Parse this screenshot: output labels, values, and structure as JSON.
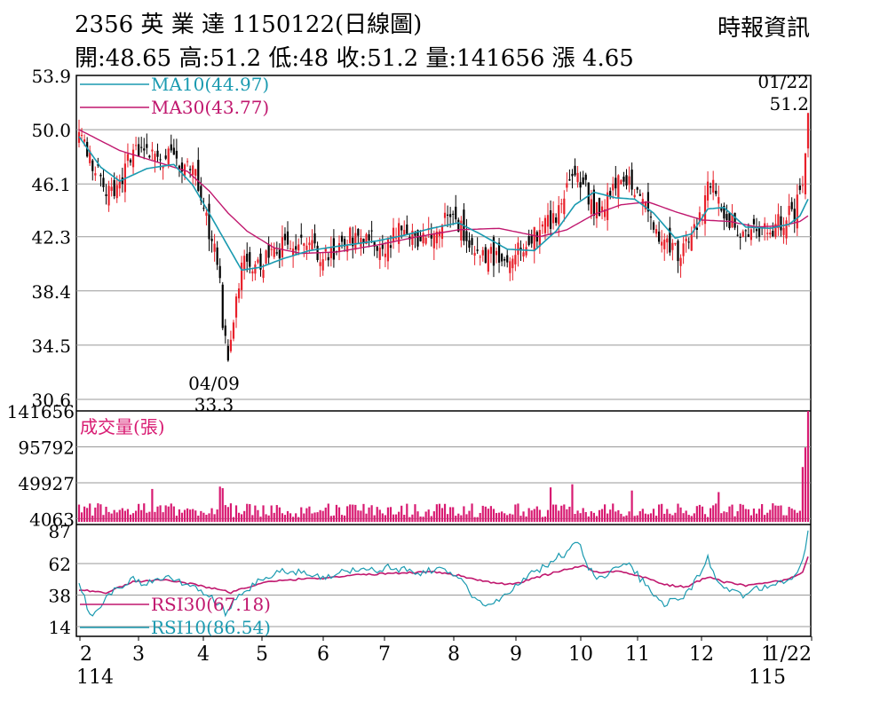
{
  "header": {
    "title": "2356 英 業 達 1150122(日線圖)",
    "summary": "開:48.65 高:51.2 低:48 收:51.2 量:141656 漲 4.65",
    "source": "時報資訊"
  },
  "colors": {
    "up": "#e8202a",
    "down": "#000000",
    "ma10": "#1a9ab0",
    "ma30": "#c0176e",
    "volume": "#d81b72",
    "rsi10": "#1a9ab0",
    "rsi30": "#c0176e",
    "grid": "#999999"
  },
  "chart_data": [
    {
      "type": "candlestick",
      "title": "2356 英 業 達 1150122(日線圖)",
      "y_ticks": [
        53.9,
        50.0,
        46.1,
        42.3,
        38.4,
        34.5,
        30.6
      ],
      "ylim": [
        30.6,
        53.9
      ],
      "grid": true,
      "x_tick_labels": [
        {
          "label": "2",
          "sub": "114"
        },
        {
          "label": "3"
        },
        {
          "label": "4"
        },
        {
          "label": "5"
        },
        {
          "label": "6"
        },
        {
          "label": "7"
        },
        {
          "label": "8"
        },
        {
          "label": "9"
        },
        {
          "label": "10"
        },
        {
          "label": "11"
        },
        {
          "label": "12"
        },
        {
          "label": "1",
          "sub": "115"
        },
        {
          "label": "1/22"
        }
      ],
      "annotations": [
        {
          "date": "04/09",
          "value": "33.3",
          "position": "below"
        },
        {
          "date": "01/22",
          "value": "51.2",
          "position": "above"
        }
      ],
      "legend": [
        {
          "name": "MA10(44.97)",
          "series": "ma10"
        },
        {
          "name": "MA30(43.77)",
          "series": "ma30"
        }
      ],
      "close_path": [
        [
          0,
          49.6
        ],
        [
          5,
          47.5
        ],
        [
          10,
          45.6
        ],
        [
          14,
          46.0
        ],
        [
          20,
          48.4
        ],
        [
          28,
          47.9
        ],
        [
          35,
          48.0
        ],
        [
          40,
          47.4
        ],
        [
          43,
          46.6
        ],
        [
          46,
          44.2
        ],
        [
          49,
          42.0
        ],
        [
          52,
          40.0
        ],
        [
          53,
          36.2
        ],
        [
          55,
          34.0
        ],
        [
          58,
          37.5
        ],
        [
          60,
          40.4
        ],
        [
          64,
          39.8
        ],
        [
          70,
          40.9
        ],
        [
          76,
          41.7
        ],
        [
          82,
          42.2
        ],
        [
          86,
          41.4
        ],
        [
          91,
          40.9
        ],
        [
          96,
          41.6
        ],
        [
          100,
          42.4
        ],
        [
          104,
          41.8
        ],
        [
          108,
          42.3
        ],
        [
          112,
          41.5
        ],
        [
          115,
          42.1
        ],
        [
          120,
          43.0
        ],
        [
          125,
          42.1
        ],
        [
          132,
          43.1
        ],
        [
          138,
          43.9
        ],
        [
          142,
          42.6
        ],
        [
          148,
          41.3
        ],
        [
          155,
          40.6
        ],
        [
          160,
          41.1
        ],
        [
          165,
          41.9
        ],
        [
          170,
          42.8
        ],
        [
          176,
          43.9
        ],
        [
          180,
          46.3
        ],
        [
          183,
          47.0
        ],
        [
          187,
          45.7
        ],
        [
          190,
          44.1
        ],
        [
          194,
          44.7
        ],
        [
          198,
          45.9
        ],
        [
          202,
          46.5
        ],
        [
          206,
          45.8
        ],
        [
          210,
          43.7
        ],
        [
          214,
          42.6
        ],
        [
          218,
          41.8
        ],
        [
          222,
          40.9
        ],
        [
          226,
          42.1
        ],
        [
          230,
          44.2
        ],
        [
          233,
          46.3
        ],
        [
          236,
          44.6
        ],
        [
          240,
          43.5
        ],
        [
          244,
          42.8
        ],
        [
          248,
          42.4
        ],
        [
          252,
          43.0
        ],
        [
          256,
          42.9
        ],
        [
          260,
          43.6
        ],
        [
          264,
          44.1
        ],
        [
          266,
          45.4
        ],
        [
          268,
          48.0
        ],
        [
          269,
          51.2
        ]
      ],
      "ma10_path": [
        [
          0,
          49.5
        ],
        [
          8,
          47.3
        ],
        [
          15,
          46.3
        ],
        [
          25,
          47.2
        ],
        [
          35,
          47.5
        ],
        [
          42,
          46.0
        ],
        [
          48,
          44.0
        ],
        [
          55,
          41.6
        ],
        [
          60,
          39.9
        ],
        [
          67,
          40.1
        ],
        [
          75,
          40.7
        ],
        [
          85,
          41.3
        ],
        [
          95,
          41.6
        ],
        [
          110,
          42.0
        ],
        [
          120,
          42.4
        ],
        [
          130,
          42.9
        ],
        [
          140,
          43.3
        ],
        [
          148,
          42.5
        ],
        [
          158,
          41.4
        ],
        [
          168,
          41.3
        ],
        [
          176,
          42.7
        ],
        [
          183,
          44.6
        ],
        [
          190,
          45.5
        ],
        [
          198,
          45.1
        ],
        [
          205,
          45.0
        ],
        [
          212,
          44.0
        ],
        [
          220,
          42.2
        ],
        [
          226,
          42.5
        ],
        [
          232,
          44.3
        ],
        [
          238,
          44.4
        ],
        [
          246,
          43.0
        ],
        [
          255,
          42.9
        ],
        [
          262,
          43.2
        ],
        [
          266,
          43.8
        ],
        [
          269,
          45.0
        ]
      ],
      "ma30_path": [
        [
          0,
          50.0
        ],
        [
          15,
          48.5
        ],
        [
          30,
          47.6
        ],
        [
          40,
          47.0
        ],
        [
          48,
          45.6
        ],
        [
          55,
          44.0
        ],
        [
          62,
          42.7
        ],
        [
          72,
          41.5
        ],
        [
          82,
          41.1
        ],
        [
          95,
          41.2
        ],
        [
          110,
          41.7
        ],
        [
          125,
          42.3
        ],
        [
          140,
          42.8
        ],
        [
          155,
          42.9
        ],
        [
          170,
          42.3
        ],
        [
          180,
          42.8
        ],
        [
          190,
          43.9
        ],
        [
          200,
          44.6
        ],
        [
          210,
          44.8
        ],
        [
          220,
          44.1
        ],
        [
          230,
          43.5
        ],
        [
          240,
          43.4
        ],
        [
          250,
          43.0
        ],
        [
          260,
          43.1
        ],
        [
          266,
          43.4
        ],
        [
          269,
          43.8
        ]
      ]
    },
    {
      "type": "bar",
      "title": "成交量(張)",
      "y_ticks": [
        141656,
        95792,
        49927,
        4063
      ],
      "ylim": [
        0,
        141656
      ],
      "grid": true,
      "spikes": [
        [
          27,
          42000
        ],
        [
          52,
          45000
        ],
        [
          53,
          43000
        ],
        [
          174,
          44000
        ],
        [
          182,
          48000
        ],
        [
          204,
          40000
        ],
        [
          236,
          38000
        ],
        [
          267,
          70000
        ],
        [
          268,
          95000
        ],
        [
          269,
          141656
        ]
      ]
    },
    {
      "type": "line",
      "title": "RSI",
      "y_ticks": [
        87,
        62,
        38,
        14
      ],
      "ylim": [
        14,
        87
      ],
      "grid": true,
      "legend": [
        {
          "name": "RSI30(67.18)",
          "series": "rsi30"
        },
        {
          "name": "RSI10(86.54)",
          "series": "rsi10"
        }
      ],
      "rsi10_path": [
        [
          0,
          48
        ],
        [
          4,
          22
        ],
        [
          8,
          30
        ],
        [
          12,
          40
        ],
        [
          16,
          44
        ],
        [
          20,
          50
        ],
        [
          25,
          46
        ],
        [
          30,
          52
        ],
        [
          35,
          50
        ],
        [
          40,
          45
        ],
        [
          44,
          42
        ],
        [
          50,
          34
        ],
        [
          54,
          25
        ],
        [
          58,
          35
        ],
        [
          62,
          42
        ],
        [
          68,
          50
        ],
        [
          75,
          56
        ],
        [
          82,
          55
        ],
        [
          88,
          52
        ],
        [
          95,
          54
        ],
        [
          102,
          58
        ],
        [
          108,
          56
        ],
        [
          114,
          60
        ],
        [
          120,
          57
        ],
        [
          126,
          54
        ],
        [
          132,
          58
        ],
        [
          138,
          55
        ],
        [
          142,
          46
        ],
        [
          146,
          34
        ],
        [
          152,
          32
        ],
        [
          158,
          38
        ],
        [
          164,
          50
        ],
        [
          170,
          58
        ],
        [
          176,
          66
        ],
        [
          180,
          70
        ],
        [
          184,
          80
        ],
        [
          188,
          60
        ],
        [
          192,
          50
        ],
        [
          196,
          55
        ],
        [
          200,
          62
        ],
        [
          204,
          60
        ],
        [
          208,
          48
        ],
        [
          212,
          40
        ],
        [
          216,
          32
        ],
        [
          220,
          34
        ],
        [
          224,
          38
        ],
        [
          228,
          52
        ],
        [
          232,
          66
        ],
        [
          236,
          46
        ],
        [
          240,
          40
        ],
        [
          246,
          38
        ],
        [
          252,
          44
        ],
        [
          258,
          48
        ],
        [
          264,
          50
        ],
        [
          267,
          62
        ],
        [
          269,
          87
        ]
      ],
      "rsi30_path": [
        [
          0,
          42
        ],
        [
          10,
          40
        ],
        [
          20,
          48
        ],
        [
          30,
          50
        ],
        [
          40,
          47
        ],
        [
          50,
          43
        ],
        [
          56,
          40
        ],
        [
          62,
          44
        ],
        [
          70,
          48
        ],
        [
          80,
          50
        ],
        [
          90,
          51
        ],
        [
          100,
          53
        ],
        [
          110,
          54
        ],
        [
          120,
          55
        ],
        [
          130,
          56
        ],
        [
          140,
          53
        ],
        [
          150,
          48
        ],
        [
          160,
          46
        ],
        [
          170,
          52
        ],
        [
          180,
          58
        ],
        [
          186,
          60
        ],
        [
          192,
          55
        ],
        [
          200,
          56
        ],
        [
          208,
          52
        ],
        [
          216,
          46
        ],
        [
          224,
          44
        ],
        [
          232,
          52
        ],
        [
          238,
          48
        ],
        [
          246,
          45
        ],
        [
          254,
          47
        ],
        [
          262,
          50
        ],
        [
          267,
          56
        ],
        [
          269,
          67.18
        ]
      ]
    }
  ]
}
